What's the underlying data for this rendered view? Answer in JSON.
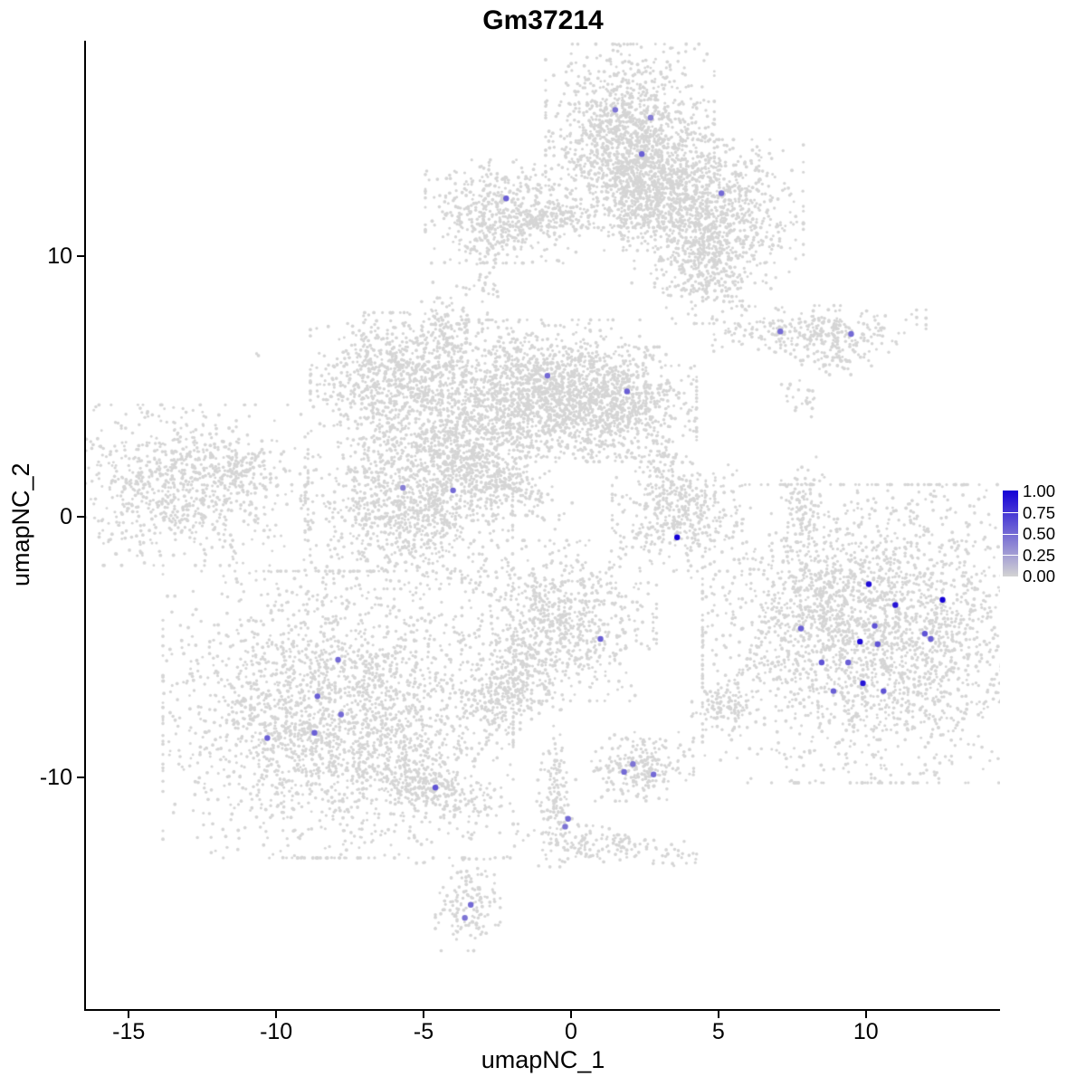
{
  "chart_data": {
    "type": "scatter",
    "title": "Gm37214",
    "xlabel": "umapNC_1",
    "ylabel": "umapNC_2",
    "xlim": [
      -16.45,
      14.55
    ],
    "ylim": [
      -18.9,
      18.25
    ],
    "x_ticks": [
      -15,
      -10,
      -5,
      0,
      5,
      10
    ],
    "y_ticks": [
      -10,
      0,
      10
    ],
    "grid": false,
    "legend": {
      "position": "right",
      "labels": [
        "1.00",
        "0.75",
        "0.50",
        "0.25",
        "0.00"
      ]
    },
    "color_scale": {
      "low": "#d3d3d3",
      "high": "#1400d6"
    },
    "background_points_color": "#d5d5d5",
    "clusters": [
      {
        "x": 2.0,
        "y": 14.6,
        "rx": 1.3,
        "ry": 1.6,
        "n": 1300
      },
      {
        "x": 2.1,
        "y": 12.4,
        "rx": 0.7,
        "ry": 1.0,
        "n": 350
      },
      {
        "x": 4.8,
        "y": 11.6,
        "rx": 1.4,
        "ry": 1.3,
        "n": 900
      },
      {
        "x": 4.6,
        "y": 9.6,
        "rx": 0.8,
        "ry": 1.0,
        "n": 300
      },
      {
        "x": 3.3,
        "y": 12.9,
        "rx": 0.8,
        "ry": 0.8,
        "n": 250
      },
      {
        "x": -2.3,
        "y": 11.7,
        "rx": 1.2,
        "ry": 0.9,
        "n": 500
      },
      {
        "x": -0.6,
        "y": 11.4,
        "rx": 1.1,
        "ry": 0.3,
        "n": 150
      },
      {
        "x": -3.0,
        "y": 10.4,
        "rx": 0.3,
        "ry": 0.5,
        "n": 40
      },
      {
        "x": -2.9,
        "y": 8.9,
        "rx": 0.3,
        "ry": 0.3,
        "n": 25
      },
      {
        "x": -6.2,
        "y": 5.4,
        "rx": 1.2,
        "ry": 1.1,
        "n": 700
      },
      {
        "x": -4.3,
        "y": 7.0,
        "rx": 0.4,
        "ry": 0.9,
        "n": 130
      },
      {
        "x": -1.2,
        "y": 4.9,
        "rx": 1.7,
        "ry": 1.2,
        "n": 1300
      },
      {
        "x": 1.4,
        "y": 4.3,
        "rx": 1.3,
        "ry": 1.0,
        "n": 800
      },
      {
        "x": -3.7,
        "y": 2.9,
        "rx": 1.5,
        "ry": 1.3,
        "n": 900
      },
      {
        "x": -5.5,
        "y": 0.3,
        "rx": 1.6,
        "ry": 1.4,
        "n": 1000
      },
      {
        "x": -2.5,
        "y": 1.4,
        "rx": 1.2,
        "ry": 0.35,
        "rot": -30,
        "n": 200
      },
      {
        "x": -13.1,
        "y": 1.2,
        "rx": 1.9,
        "ry": 1.4,
        "n": 900
      },
      {
        "x": -11.3,
        "y": 1.9,
        "rx": 0.5,
        "ry": 0.35,
        "n": 80
      },
      {
        "x": 3.6,
        "y": 0.1,
        "rx": 1.0,
        "ry": 1.0,
        "n": 420
      },
      {
        "x": 3.1,
        "y": 1.7,
        "rx": 0.35,
        "ry": 0.8,
        "n": 60
      },
      {
        "x": 8.3,
        "y": 7.1,
        "rx": 1.7,
        "ry": 0.45,
        "n": 320
      },
      {
        "x": 9.0,
        "y": 6.1,
        "rx": 0.6,
        "ry": 0.3,
        "n": 60
      },
      {
        "x": 7.8,
        "y": 4.7,
        "rx": 0.3,
        "ry": 0.4,
        "n": 25
      },
      {
        "x": 7.9,
        "y": 0.3,
        "rx": 0.35,
        "ry": 0.9,
        "n": 110
      },
      {
        "x": 10.4,
        "y": -4.5,
        "rx": 2.7,
        "ry": 2.6,
        "n": 2600
      },
      {
        "x": 8.3,
        "y": -3.3,
        "rx": 0.8,
        "ry": 0.8,
        "n": 150
      },
      {
        "x": -0.4,
        "y": -4.0,
        "rx": 1.5,
        "ry": 1.4,
        "n": 800
      },
      {
        "x": -1.6,
        "y": -6.0,
        "rx": 0.5,
        "ry": 0.8,
        "rot": 20,
        "n": 120
      },
      {
        "x": -2.4,
        "y": -7.0,
        "rx": 0.6,
        "ry": 0.6,
        "n": 180
      },
      {
        "x": -7.9,
        "y": -7.6,
        "rx": 2.7,
        "ry": 2.5,
        "n": 2600
      },
      {
        "x": -4.9,
        "y": -10.3,
        "rx": 1.2,
        "ry": 0.45,
        "rot": -25,
        "n": 250
      },
      {
        "x": 2.4,
        "y": -9.6,
        "rx": 0.8,
        "ry": 0.6,
        "n": 230
      },
      {
        "x": 5.2,
        "y": -7.3,
        "rx": 0.5,
        "ry": 0.4,
        "n": 110
      },
      {
        "x": -0.5,
        "y": -10.9,
        "rx": 0.3,
        "ry": 1.3,
        "n": 140
      },
      {
        "x": 1.2,
        "y": -12.6,
        "rx": 1.4,
        "ry": 0.3,
        "rot": -8,
        "n": 150
      },
      {
        "x": -3.5,
        "y": -14.9,
        "rx": 0.5,
        "ry": 0.8,
        "n": 150
      },
      {
        "x": -10.6,
        "y": 6.3,
        "rx": 0.1,
        "ry": 0.1,
        "n": 2
      },
      {
        "x": 4.1,
        "y": -2.1,
        "rx": 0.15,
        "ry": 0.15,
        "n": 3
      },
      {
        "x": 8.0,
        "y": -1.6,
        "rx": 0.12,
        "ry": 0.12,
        "n": 2
      },
      {
        "x": 8.9,
        "y": -2.2,
        "rx": 0.12,
        "ry": 0.12,
        "n": 2
      },
      {
        "x": -5.2,
        "y": -13.2,
        "rx": 0.15,
        "ry": 0.15,
        "n": 3
      },
      {
        "x": -3.3,
        "y": -12.4,
        "rx": 0.2,
        "ry": 0.3,
        "n": 8
      },
      {
        "x": -2.9,
        "y": 7.9,
        "rx": 0.12,
        "ry": 0.12,
        "n": 2
      },
      {
        "x": 3.0,
        "y": 9.2,
        "rx": 0.15,
        "ry": 0.15,
        "n": 3
      },
      {
        "x": 4.4,
        "y": 8.6,
        "rx": 0.15,
        "ry": 0.15,
        "n": 2
      }
    ],
    "expressing_cells": [
      {
        "x": 1.5,
        "y": 15.6,
        "value": 0.45
      },
      {
        "x": 2.7,
        "y": 15.3,
        "value": 0.4
      },
      {
        "x": 2.4,
        "y": 13.9,
        "value": 0.55
      },
      {
        "x": 5.1,
        "y": 12.4,
        "value": 0.5
      },
      {
        "x": -2.2,
        "y": 12.2,
        "value": 0.55
      },
      {
        "x": 7.1,
        "y": 7.1,
        "value": 0.5
      },
      {
        "x": 9.5,
        "y": 7.0,
        "value": 0.5
      },
      {
        "x": -0.8,
        "y": 5.4,
        "value": 0.5
      },
      {
        "x": 1.9,
        "y": 4.8,
        "value": 0.55
      },
      {
        "x": -4.0,
        "y": 1.0,
        "value": 0.5
      },
      {
        "x": -5.7,
        "y": 1.1,
        "value": 0.4
      },
      {
        "x": 3.6,
        "y": -0.8,
        "value": 1.0
      },
      {
        "x": 10.1,
        "y": -2.6,
        "value": 0.95
      },
      {
        "x": 12.6,
        "y": -3.2,
        "value": 1.0
      },
      {
        "x": 11.0,
        "y": -3.4,
        "value": 0.9
      },
      {
        "x": 12.0,
        "y": -4.5,
        "value": 0.6
      },
      {
        "x": 12.2,
        "y": -4.7,
        "value": 0.55
      },
      {
        "x": 10.3,
        "y": -4.2,
        "value": 0.6
      },
      {
        "x": 9.8,
        "y": -4.8,
        "value": 0.95
      },
      {
        "x": 10.4,
        "y": -4.9,
        "value": 0.6
      },
      {
        "x": 7.8,
        "y": -4.3,
        "value": 0.55
      },
      {
        "x": 8.5,
        "y": -5.6,
        "value": 0.6
      },
      {
        "x": 9.4,
        "y": -5.6,
        "value": 0.55
      },
      {
        "x": 9.9,
        "y": -6.4,
        "value": 0.9
      },
      {
        "x": 10.6,
        "y": -6.7,
        "value": 0.6
      },
      {
        "x": 8.9,
        "y": -6.7,
        "value": 0.55
      },
      {
        "x": 1.0,
        "y": -4.7,
        "value": 0.55
      },
      {
        "x": -7.9,
        "y": -5.5,
        "value": 0.5
      },
      {
        "x": -8.6,
        "y": -6.9,
        "value": 0.55
      },
      {
        "x": -7.8,
        "y": -7.6,
        "value": 0.5
      },
      {
        "x": -8.7,
        "y": -8.3,
        "value": 0.55
      },
      {
        "x": -10.3,
        "y": -8.5,
        "value": 0.55
      },
      {
        "x": -4.6,
        "y": -10.4,
        "value": 0.6
      },
      {
        "x": 1.8,
        "y": -9.8,
        "value": 0.5
      },
      {
        "x": 2.1,
        "y": -9.5,
        "value": 0.45
      },
      {
        "x": 2.8,
        "y": -9.9,
        "value": 0.5
      },
      {
        "x": -0.1,
        "y": -11.6,
        "value": 0.5
      },
      {
        "x": -0.2,
        "y": -11.9,
        "value": 0.45
      },
      {
        "x": -3.4,
        "y": -14.9,
        "value": 0.5
      },
      {
        "x": -3.6,
        "y": -15.4,
        "value": 0.45
      }
    ]
  }
}
